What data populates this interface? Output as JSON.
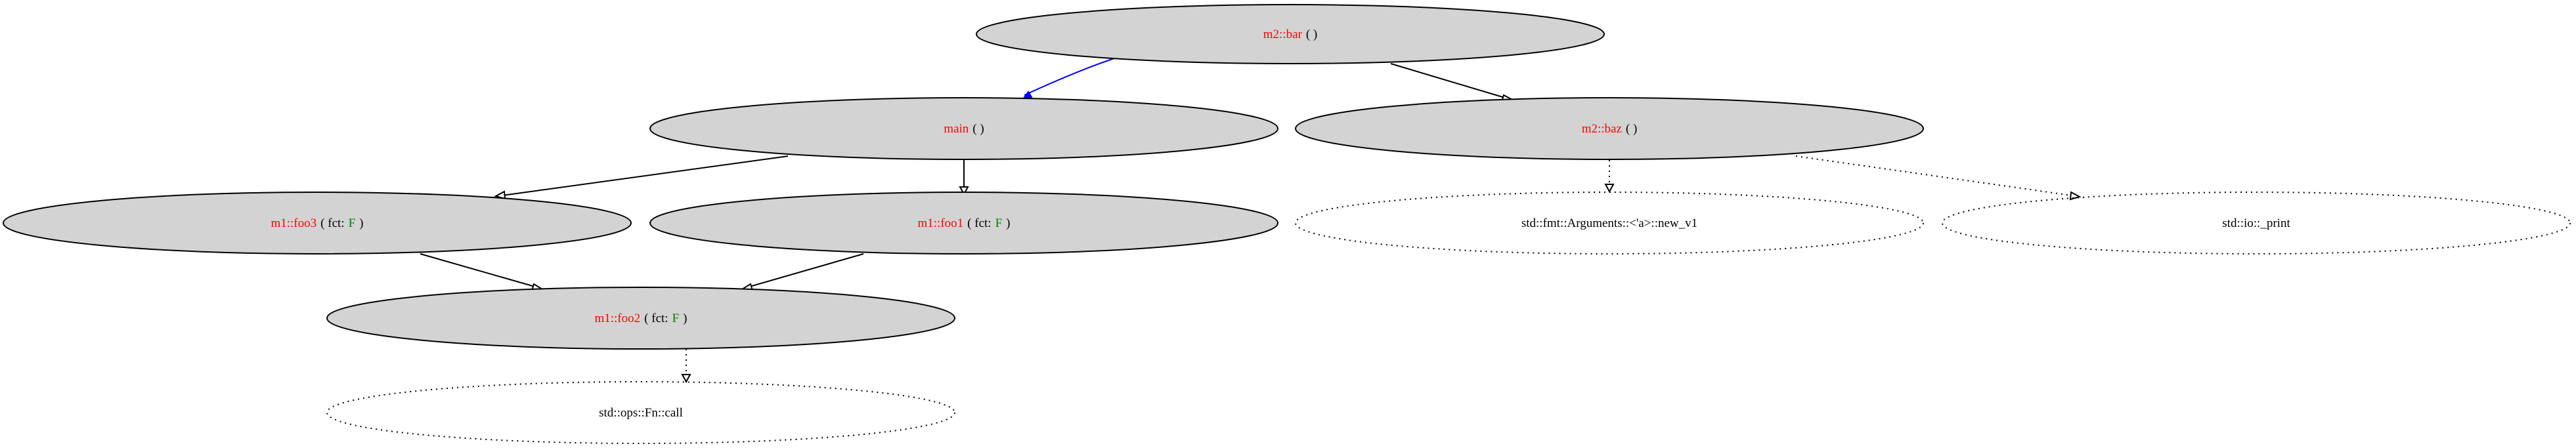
{
  "nodes": {
    "m2_bar": {
      "name": "m2::bar",
      "args": "( )"
    },
    "main": {
      "name": "main",
      "args": "( )"
    },
    "m2_baz": {
      "name": "m2::baz",
      "args": "( )"
    },
    "m1_foo3": {
      "name": "m1::foo3",
      "open": "( fct:",
      "generic": "F",
      "close": ")"
    },
    "m1_foo1": {
      "name": "m1::foo1",
      "open": "( fct:",
      "generic": "F",
      "close": ")"
    },
    "m1_foo2": {
      "name": "m1::foo2",
      "open": "( fct:",
      "generic": "F",
      "close": ")"
    },
    "fmt_new": {
      "label": "std::fmt::Arguments::<'a>::new_v1"
    },
    "io_print": {
      "label": "std::io::_print"
    },
    "fn_call": {
      "label": "std::ops::Fn::call"
    }
  },
  "colors": {
    "node_fill": "#d3d3d3",
    "function_name": "#ff0000",
    "generic_param": "#008000",
    "highlight_edge": "#0000ff"
  }
}
